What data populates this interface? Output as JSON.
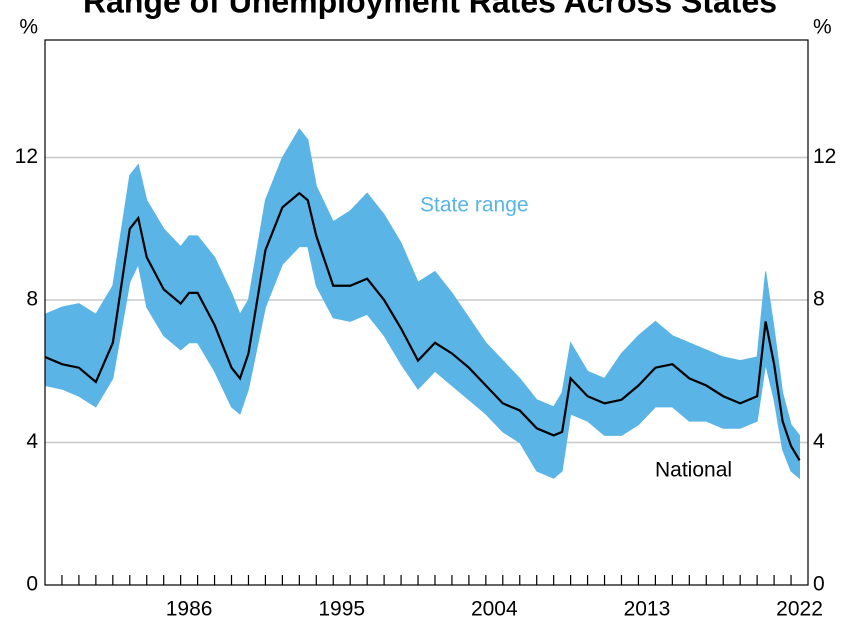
{
  "chart_data": {
    "type": "range-line",
    "title": "Range of Unemployment Rates Across States",
    "y_unit": "%",
    "x": [
      1978,
      1979,
      1980,
      1981,
      1982,
      1983,
      1983.5,
      1984,
      1985,
      1986,
      1986.5,
      1987,
      1988,
      1989,
      1989.5,
      1990,
      1991,
      1992,
      1993,
      1993.5,
      1994,
      1995,
      1996,
      1997,
      1998,
      1999,
      2000,
      2001,
      2002,
      2003,
      2004,
      2005,
      2006,
      2007,
      2008,
      2008.5,
      2009,
      2010,
      2011,
      2012,
      2013,
      2014,
      2015,
      2016,
      2017,
      2018,
      2019,
      2020,
      2020.5,
      2021,
      2021.5,
      2022,
      2022.5
    ],
    "series": [
      {
        "name": "State range",
        "color": "#5ab4e5",
        "low": [
          5.6,
          5.5,
          5.3,
          5.0,
          5.8,
          8.5,
          9.0,
          7.8,
          7.0,
          6.6,
          6.8,
          6.8,
          6.0,
          5.0,
          4.8,
          5.5,
          7.8,
          9.0,
          9.5,
          9.5,
          8.4,
          7.5,
          7.4,
          7.6,
          7.0,
          6.2,
          5.5,
          6.0,
          5.6,
          5.2,
          4.8,
          4.3,
          4.0,
          3.2,
          3.0,
          3.2,
          4.8,
          4.6,
          4.2,
          4.2,
          4.5,
          5.0,
          5.0,
          4.6,
          4.6,
          4.4,
          4.4,
          4.6,
          6.2,
          5.2,
          3.8,
          3.2,
          3.0
        ],
        "high": [
          7.6,
          7.8,
          7.9,
          7.6,
          8.4,
          11.5,
          11.8,
          10.8,
          10.0,
          9.5,
          9.8,
          9.8,
          9.2,
          8.2,
          7.6,
          8.0,
          10.8,
          12.0,
          12.8,
          12.5,
          11.2,
          10.2,
          10.5,
          11.0,
          10.4,
          9.6,
          8.5,
          8.8,
          8.2,
          7.5,
          6.8,
          6.3,
          5.8,
          5.2,
          5.0,
          5.4,
          6.8,
          6.0,
          5.8,
          6.5,
          7.0,
          7.4,
          7.0,
          6.8,
          6.6,
          6.4,
          6.3,
          6.4,
          8.8,
          7.2,
          5.4,
          4.5,
          4.2
        ]
      },
      {
        "name": "National",
        "color": "#000000",
        "values": [
          6.4,
          6.2,
          6.1,
          5.7,
          6.8,
          10.0,
          10.3,
          9.2,
          8.3,
          7.9,
          8.2,
          8.2,
          7.3,
          6.1,
          5.8,
          6.5,
          9.4,
          10.6,
          11.0,
          10.8,
          9.8,
          8.4,
          8.4,
          8.6,
          8.0,
          7.2,
          6.3,
          6.8,
          6.5,
          6.1,
          5.6,
          5.1,
          4.9,
          4.4,
          4.2,
          4.3,
          5.8,
          5.3,
          5.1,
          5.2,
          5.6,
          6.1,
          6.2,
          5.8,
          5.6,
          5.3,
          5.1,
          5.3,
          7.4,
          6.2,
          4.6,
          3.9,
          3.5
        ]
      }
    ],
    "xlim": [
      1978,
      2023
    ],
    "xticks": [
      {
        "value": 1986.5,
        "label": "1986"
      },
      {
        "value": 1995.5,
        "label": "1995"
      },
      {
        "value": 2004.5,
        "label": "2004"
      },
      {
        "value": 2013.5,
        "label": "2013"
      },
      {
        "value": 2022.5,
        "label": "2022"
      }
    ],
    "xminorticks": [
      1979,
      1980,
      1981,
      1982,
      1983,
      1984,
      1985,
      1986,
      1987,
      1988,
      1989,
      1990,
      1991,
      1992,
      1993,
      1994,
      1995,
      1996,
      1997,
      1998,
      1999,
      2000,
      2001,
      2002,
      2003,
      2004,
      2005,
      2006,
      2007,
      2008,
      2009,
      2010,
      2011,
      2012,
      2013,
      2014,
      2015,
      2016,
      2017,
      2018,
      2019,
      2020,
      2021,
      2022
    ],
    "ylim": [
      0,
      15.3
    ],
    "yticks": [
      0,
      4,
      8,
      12
    ],
    "grid": true
  }
}
